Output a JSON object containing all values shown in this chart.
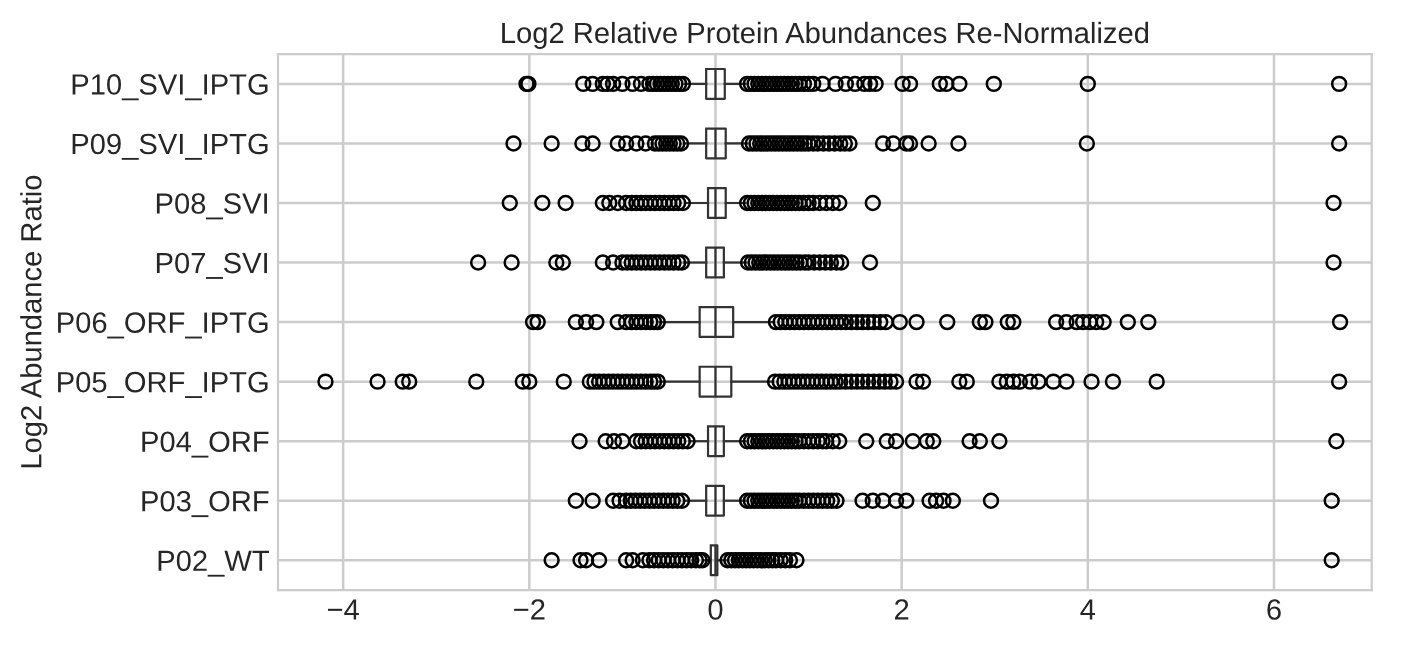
{
  "chart_data": {
    "type": "box",
    "orientation": "horizontal",
    "title": "Log2 Relative Protein Abundances Re-Normalized",
    "ylabel": "Log2 Abundance Ratio",
    "categories": [
      "P10_SVI_IPTG",
      "P09_SVI_IPTG",
      "P08_SVI",
      "P07_SVI",
      "P06_ORF_IPTG",
      "P05_ORF_IPTG",
      "P04_ORF",
      "P03_ORF",
      "P02_WT"
    ],
    "boxes": [
      {
        "low": -0.33,
        "q1": -0.1,
        "median": 0,
        "q3": 0.1,
        "high": 0.32,
        "outliers": [
          -2.03,
          -2.01,
          -1.42,
          -1.32,
          -1.21,
          -1.16,
          -1.1,
          -1.0,
          -0.89,
          -0.8,
          -0.71,
          -0.67,
          -0.63,
          -0.59,
          -0.55,
          -0.51,
          -0.47,
          -0.43,
          -0.39,
          -0.35,
          0.34,
          0.38,
          0.42,
          0.46,
          0.5,
          0.54,
          0.58,
          0.62,
          0.66,
          0.7,
          0.74,
          0.78,
          0.82,
          0.86,
          0.9,
          0.95,
          1.0,
          1.05,
          1.15,
          1.29,
          1.4,
          1.5,
          1.6,
          1.66,
          1.72,
          2.01,
          2.09,
          2.41,
          2.48,
          2.62,
          2.99,
          4.0,
          6.7
        ]
      },
      {
        "low": -0.34,
        "q1": -0.1,
        "median": 0,
        "q3": 0.11,
        "high": 0.34,
        "outliers": [
          -2.17,
          -1.76,
          -1.43,
          -1.32,
          -1.05,
          -0.96,
          -0.85,
          -0.75,
          -0.65,
          -0.61,
          -0.57,
          -0.53,
          -0.49,
          -0.45,
          -0.41,
          -0.37,
          0.36,
          0.4,
          0.44,
          0.48,
          0.52,
          0.56,
          0.6,
          0.64,
          0.68,
          0.72,
          0.76,
          0.8,
          0.84,
          0.88,
          0.92,
          0.96,
          1.0,
          1.05,
          1.1,
          1.16,
          1.22,
          1.28,
          1.34,
          1.39,
          1.44,
          1.8,
          1.91,
          2.05,
          2.09,
          2.29,
          2.61,
          3.99,
          6.7
        ]
      },
      {
        "low": -0.32,
        "q1": -0.08,
        "median": 0,
        "q3": 0.11,
        "high": 0.32,
        "outliers": [
          -2.21,
          -1.86,
          -1.61,
          -1.21,
          -1.14,
          -1.05,
          -0.96,
          -0.9,
          -0.85,
          -0.8,
          -0.75,
          -0.7,
          -0.65,
          -0.6,
          -0.55,
          -0.5,
          -0.45,
          -0.4,
          -0.35,
          0.34,
          0.38,
          0.42,
          0.46,
          0.5,
          0.54,
          0.58,
          0.62,
          0.66,
          0.7,
          0.74,
          0.78,
          0.82,
          0.86,
          0.9,
          0.95,
          1.0,
          1.05,
          1.12,
          1.19,
          1.26,
          1.33,
          1.69,
          6.64
        ]
      },
      {
        "low": -0.34,
        "q1": -0.1,
        "median": 0,
        "q3": 0.09,
        "high": 0.33,
        "outliers": [
          -2.55,
          -2.19,
          -1.71,
          -1.64,
          -1.21,
          -1.1,
          -1.0,
          -0.95,
          -0.9,
          -0.85,
          -0.8,
          -0.75,
          -0.7,
          -0.65,
          -0.6,
          -0.55,
          -0.5,
          -0.45,
          -0.4,
          -0.36,
          0.35,
          0.39,
          0.43,
          0.47,
          0.51,
          0.55,
          0.59,
          0.63,
          0.67,
          0.71,
          0.75,
          0.79,
          0.83,
          0.87,
          0.91,
          0.96,
          1.0,
          1.06,
          1.12,
          1.18,
          1.24,
          1.3,
          1.35,
          1.66,
          6.64
        ]
      },
      {
        "low": -0.6,
        "q1": -0.17,
        "median": 0,
        "q3": 0.19,
        "high": 0.63,
        "outliers": [
          -1.96,
          -1.91,
          -1.5,
          -1.39,
          -1.28,
          -1.05,
          -0.96,
          -0.9,
          -0.85,
          -0.8,
          -0.75,
          -0.7,
          -0.66,
          -0.62,
          0.65,
          0.7,
          0.75,
          0.8,
          0.85,
          0.9,
          0.95,
          1.0,
          1.05,
          1.1,
          1.15,
          1.2,
          1.25,
          1.3,
          1.35,
          1.4,
          1.46,
          1.52,
          1.58,
          1.64,
          1.7,
          1.77,
          1.83,
          1.98,
          2.16,
          2.49,
          2.84,
          2.9,
          3.14,
          3.2,
          3.66,
          3.77,
          3.88,
          3.95,
          4.02,
          4.09,
          4.17,
          4.43,
          4.65,
          6.71
        ]
      },
      {
        "low": -0.6,
        "q1": -0.17,
        "median": 0,
        "q3": 0.17,
        "high": 0.62,
        "outliers": [
          -4.19,
          -3.63,
          -3.36,
          -3.29,
          -2.57,
          -2.07,
          -2.0,
          -1.63,
          -1.35,
          -1.3,
          -1.25,
          -1.2,
          -1.15,
          -1.1,
          -1.05,
          -1.0,
          -0.95,
          -0.9,
          -0.85,
          -0.8,
          -0.75,
          -0.7,
          -0.66,
          -0.62,
          0.64,
          0.69,
          0.74,
          0.79,
          0.84,
          0.89,
          0.94,
          0.99,
          1.04,
          1.09,
          1.14,
          1.19,
          1.24,
          1.29,
          1.34,
          1.4,
          1.46,
          1.52,
          1.58,
          1.64,
          1.7,
          1.76,
          1.82,
          1.88,
          1.94,
          2.16,
          2.23,
          2.62,
          2.7,
          3.05,
          3.13,
          3.2,
          3.27,
          3.38,
          3.47,
          3.63,
          3.77,
          4.04,
          4.27,
          4.74,
          6.7
        ]
      },
      {
        "low": -0.28,
        "q1": -0.08,
        "median": 0,
        "q3": 0.09,
        "high": 0.32,
        "outliers": [
          -1.46,
          -1.18,
          -1.09,
          -1.0,
          -0.85,
          -0.8,
          -0.75,
          -0.7,
          -0.65,
          -0.6,
          -0.55,
          -0.5,
          -0.45,
          -0.4,
          -0.35,
          -0.3,
          0.34,
          0.38,
          0.42,
          0.46,
          0.5,
          0.54,
          0.58,
          0.62,
          0.66,
          0.7,
          0.74,
          0.78,
          0.82,
          0.86,
          0.9,
          0.95,
          1.0,
          1.05,
          1.1,
          1.15,
          1.19,
          1.26,
          1.33,
          1.62,
          1.84,
          1.94,
          2.12,
          2.27,
          2.34,
          2.73,
          2.84,
          3.05,
          6.67
        ]
      },
      {
        "low": -0.34,
        "q1": -0.1,
        "median": 0,
        "q3": 0.09,
        "high": 0.32,
        "outliers": [
          -1.5,
          -1.32,
          -1.1,
          -1.03,
          -0.96,
          -0.91,
          -0.86,
          -0.81,
          -0.76,
          -0.71,
          -0.66,
          -0.61,
          -0.56,
          -0.51,
          -0.46,
          -0.41,
          -0.36,
          0.34,
          0.38,
          0.42,
          0.46,
          0.5,
          0.54,
          0.58,
          0.62,
          0.66,
          0.7,
          0.74,
          0.78,
          0.82,
          0.86,
          0.9,
          0.95,
          1.0,
          1.05,
          1.1,
          1.15,
          1.2,
          1.25,
          1.3,
          1.58,
          1.69,
          1.8,
          1.94,
          2.05,
          2.3,
          2.37,
          2.45,
          2.55,
          2.96,
          6.62
        ]
      },
      {
        "low": -0.12,
        "q1": -0.05,
        "median": 0,
        "q3": 0.02,
        "high": 0.11,
        "outliers": [
          -1.76,
          -1.45,
          -1.39,
          -1.25,
          -0.96,
          -0.89,
          -0.78,
          -0.71,
          -0.66,
          -0.61,
          -0.56,
          -0.51,
          -0.46,
          -0.41,
          -0.36,
          -0.31,
          -0.26,
          -0.21,
          -0.17,
          -0.14,
          0.13,
          0.17,
          0.21,
          0.25,
          0.29,
          0.33,
          0.37,
          0.41,
          0.45,
          0.49,
          0.53,
          0.57,
          0.61,
          0.65,
          0.7,
          0.75,
          0.8,
          0.87,
          6.62
        ]
      }
    ],
    "xlim": [
      -4.7,
      7.05
    ],
    "xticks": [
      -4,
      -2,
      0,
      2,
      4,
      6
    ],
    "grid": true,
    "marker": "circle"
  }
}
